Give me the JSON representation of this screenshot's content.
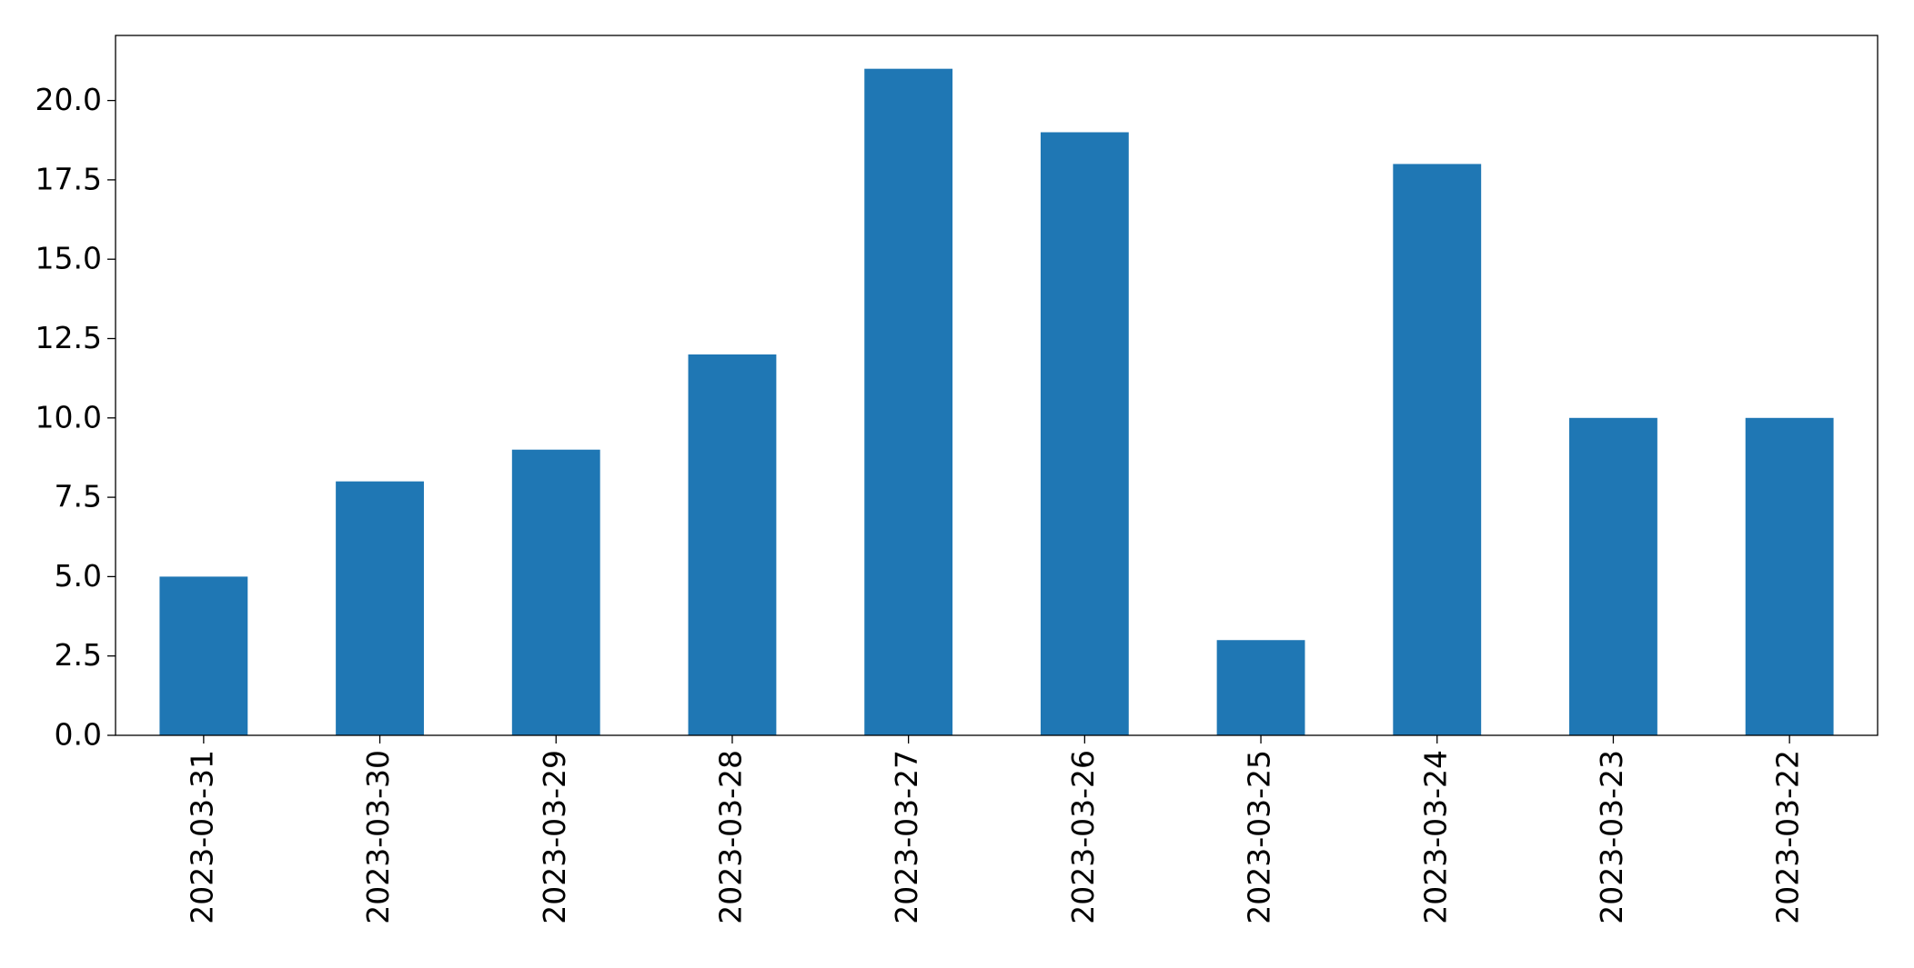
{
  "chart_data": {
    "type": "bar",
    "categories": [
      "2023-03-31",
      "2023-03-30",
      "2023-03-29",
      "2023-03-28",
      "2023-03-27",
      "2023-03-26",
      "2023-03-25",
      "2023-03-24",
      "2023-03-23",
      "2023-03-22"
    ],
    "values": [
      5,
      8,
      9,
      12,
      21,
      19,
      3,
      18,
      10,
      10
    ],
    "color": "#1f77b4",
    "ylim": [
      0,
      22.05
    ],
    "yticks": [
      {
        "value": 0,
        "label": "0.0"
      },
      2.5,
      {
        "value": 5,
        "label": "5.0"
      },
      7.5,
      {
        "value": 10,
        "label": "10.0"
      },
      12.5,
      {
        "value": 15,
        "label": "15.0"
      },
      17.5,
      {
        "value": 20,
        "label": "20.0"
      }
    ],
    "grid": false
  }
}
